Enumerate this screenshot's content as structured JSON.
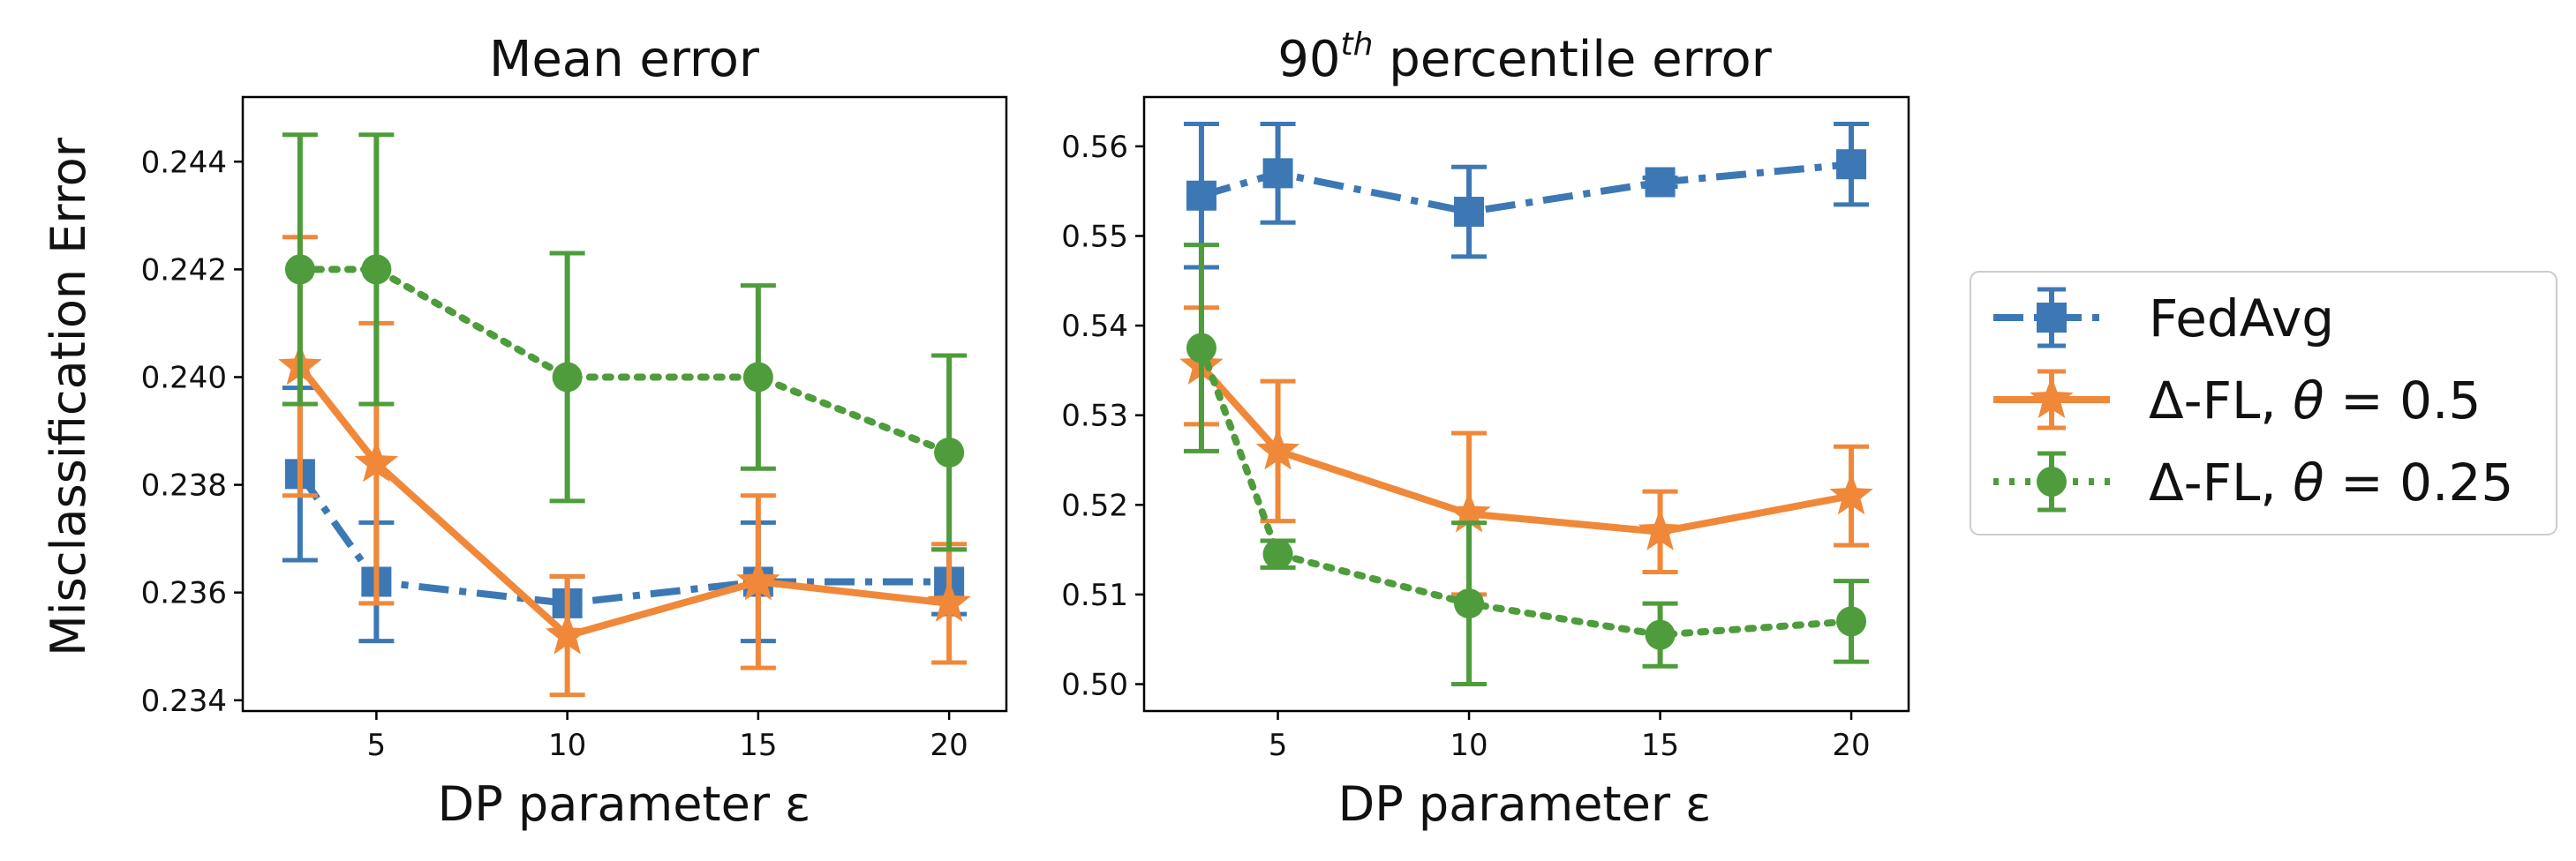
{
  "chart_data": [
    {
      "type": "line",
      "title": "Mean error",
      "xlabel": "DP parameter ε",
      "ylabel": "Misclassification Error",
      "x": [
        3,
        5,
        10,
        15,
        20
      ],
      "xticks": [
        5,
        10,
        15,
        20
      ],
      "yticks": [
        0.234,
        0.236,
        0.238,
        0.24,
        0.242,
        0.244
      ],
      "ytick_labels": [
        "0.234",
        "0.236",
        "0.238",
        "0.240",
        "0.242",
        "0.244"
      ],
      "xlim": [
        1.5,
        21.5
      ],
      "ylim": [
        0.2338,
        0.2452
      ],
      "series": [
        {
          "name": "FedAvg",
          "values": [
            0.2382,
            0.2362,
            0.2358,
            0.2362,
            0.2362
          ],
          "err": [
            0.0016,
            0.0011,
            0.0005,
            0.0011,
            0.0006
          ]
        },
        {
          "name": "Δ-FL, θ = 0.5",
          "values": [
            0.2402,
            0.2384,
            0.2352,
            0.2362,
            0.2358
          ],
          "err": [
            0.0024,
            0.0026,
            0.0011,
            0.0016,
            0.0011
          ]
        },
        {
          "name": "Δ-FL, θ = 0.25",
          "values": [
            0.242,
            0.242,
            0.24,
            0.24,
            0.2386
          ],
          "err": [
            0.0025,
            0.0025,
            0.0023,
            0.0017,
            0.0018
          ]
        }
      ]
    },
    {
      "type": "line",
      "title": "90th percentile error",
      "title_main": "90",
      "title_sup": "th",
      "title_rest": " percentile error",
      "xlabel": "DP parameter ε",
      "ylabel": "",
      "x": [
        3,
        5,
        10,
        15,
        20
      ],
      "xticks": [
        5,
        10,
        15,
        20
      ],
      "yticks": [
        0.5,
        0.51,
        0.52,
        0.53,
        0.54,
        0.55,
        0.56
      ],
      "ytick_labels": [
        "0.50",
        "0.51",
        "0.52",
        "0.53",
        "0.54",
        "0.55",
        "0.56"
      ],
      "xlim": [
        1.5,
        21.5
      ],
      "ylim": [
        0.497,
        0.5655
      ],
      "series": [
        {
          "name": "FedAvg",
          "values": [
            0.5545,
            0.557,
            0.5527,
            0.556,
            0.558
          ],
          "err": [
            0.008,
            0.0055,
            0.005,
            0.0005,
            0.0045
          ]
        },
        {
          "name": "Δ-FL, θ = 0.5",
          "values": [
            0.5355,
            0.526,
            0.519,
            0.517,
            0.521
          ],
          "err": [
            0.0065,
            0.0078,
            0.009,
            0.0045,
            0.0055
          ]
        },
        {
          "name": "Δ-FL, θ = 0.25",
          "values": [
            0.5375,
            0.5145,
            0.509,
            0.5055,
            0.507
          ],
          "err": [
            0.0115,
            0.0015,
            0.009,
            0.0035,
            0.0045
          ]
        }
      ]
    }
  ],
  "legend": {
    "placement": "right",
    "items": [
      {
        "label_main": "FedAvg",
        "label_theta": "",
        "label_value": ""
      },
      {
        "label_main": "Δ-FL, ",
        "label_theta": "θ",
        "label_value": " = 0.5"
      },
      {
        "label_main": "Δ-FL, ",
        "label_theta": "θ",
        "label_value": " = 0.25"
      }
    ]
  },
  "styles": {
    "colors": [
      "#3d78b5",
      "#f0883a",
      "#4e9c3b"
    ],
    "linestyles": [
      "dashdot",
      "solid",
      "dotted"
    ],
    "markers": [
      "square",
      "star",
      "circle"
    ]
  }
}
